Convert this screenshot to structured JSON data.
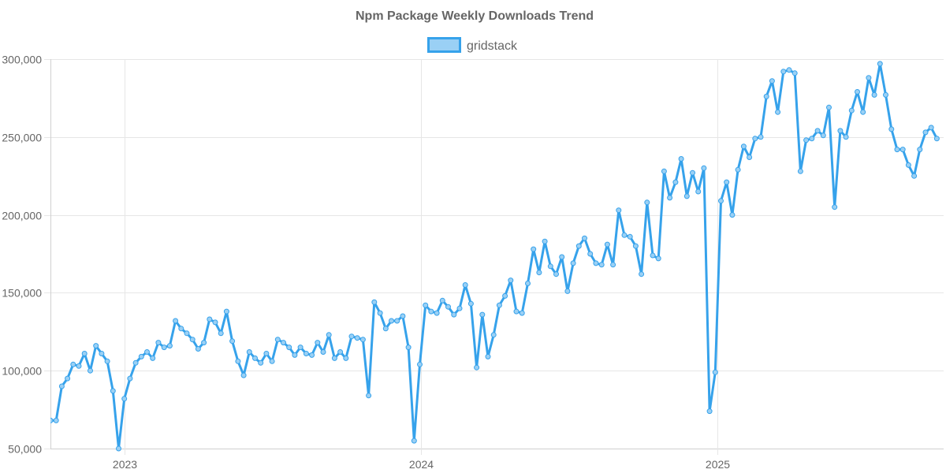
{
  "chart_data": {
    "type": "line",
    "title": "Npm Package Weekly Downloads Trend",
    "xlabel": "",
    "ylabel": "",
    "x_range": [
      "2022-10-02",
      "2025-09-14"
    ],
    "x_tick_labels": [
      {
        "date": "2023-01-01",
        "label": "2023"
      },
      {
        "date": "2024-01-01",
        "label": "2024"
      },
      {
        "date": "2025-01-01",
        "label": "2025"
      }
    ],
    "ylim": [
      50000,
      300000
    ],
    "y_ticks": [
      50000,
      100000,
      150000,
      200000,
      250000,
      300000
    ],
    "y_tick_labels": [
      "50,000",
      "100,000",
      "150,000",
      "200,000",
      "250,000",
      "300,000"
    ],
    "grid": true,
    "legend_position": "top-center",
    "colors": {
      "line": "#36a2eb",
      "fill": "#9ad0f5",
      "grid": "#e6e6e6",
      "text": "#666666"
    },
    "series": [
      {
        "name": "gridstack",
        "points": [
          [
            "2022-10-02",
            68000
          ],
          [
            "2022-10-09",
            68000
          ],
          [
            "2022-10-16",
            90000
          ],
          [
            "2022-10-23",
            95000
          ],
          [
            "2022-10-30",
            104000
          ],
          [
            "2022-11-06",
            103000
          ],
          [
            "2022-11-13",
            111000
          ],
          [
            "2022-11-20",
            100000
          ],
          [
            "2022-11-27",
            116000
          ],
          [
            "2022-12-04",
            111000
          ],
          [
            "2022-12-11",
            106000
          ],
          [
            "2022-12-18",
            87000
          ],
          [
            "2022-12-25",
            50000
          ],
          [
            "2023-01-01",
            82000
          ],
          [
            "2023-01-08",
            95000
          ],
          [
            "2023-01-15",
            105000
          ],
          [
            "2023-01-22",
            109000
          ],
          [
            "2023-01-29",
            112000
          ],
          [
            "2023-02-05",
            108000
          ],
          [
            "2023-02-12",
            118000
          ],
          [
            "2023-02-19",
            115000
          ],
          [
            "2023-02-26",
            116000
          ],
          [
            "2023-03-05",
            132000
          ],
          [
            "2023-03-12",
            127000
          ],
          [
            "2023-03-19",
            124000
          ],
          [
            "2023-03-26",
            120000
          ],
          [
            "2023-04-02",
            114000
          ],
          [
            "2023-04-09",
            118000
          ],
          [
            "2023-04-16",
            133000
          ],
          [
            "2023-04-23",
            131000
          ],
          [
            "2023-04-30",
            124000
          ],
          [
            "2023-05-07",
            138000
          ],
          [
            "2023-05-14",
            119000
          ],
          [
            "2023-05-21",
            106000
          ],
          [
            "2023-05-28",
            97000
          ],
          [
            "2023-06-04",
            112000
          ],
          [
            "2023-06-11",
            108000
          ],
          [
            "2023-06-18",
            105000
          ],
          [
            "2023-06-25",
            111000
          ],
          [
            "2023-07-02",
            106000
          ],
          [
            "2023-07-09",
            120000
          ],
          [
            "2023-07-16",
            118000
          ],
          [
            "2023-07-23",
            115000
          ],
          [
            "2023-07-30",
            110000
          ],
          [
            "2023-08-06",
            115000
          ],
          [
            "2023-08-13",
            111000
          ],
          [
            "2023-08-20",
            110000
          ],
          [
            "2023-08-27",
            118000
          ],
          [
            "2023-09-03",
            112000
          ],
          [
            "2023-09-10",
            123000
          ],
          [
            "2023-09-17",
            108000
          ],
          [
            "2023-09-24",
            112000
          ],
          [
            "2023-10-01",
            108000
          ],
          [
            "2023-10-08",
            122000
          ],
          [
            "2023-10-15",
            121000
          ],
          [
            "2023-10-22",
            120000
          ],
          [
            "2023-10-29",
            84000
          ],
          [
            "2023-11-05",
            144000
          ],
          [
            "2023-11-12",
            137000
          ],
          [
            "2023-11-19",
            127000
          ],
          [
            "2023-11-26",
            132000
          ],
          [
            "2023-12-03",
            132000
          ],
          [
            "2023-12-10",
            135000
          ],
          [
            "2023-12-17",
            115000
          ],
          [
            "2023-12-24",
            55000
          ],
          [
            "2023-12-31",
            104000
          ],
          [
            "2024-01-07",
            142000
          ],
          [
            "2024-01-14",
            138000
          ],
          [
            "2024-01-21",
            137000
          ],
          [
            "2024-01-28",
            145000
          ],
          [
            "2024-02-04",
            141000
          ],
          [
            "2024-02-11",
            136000
          ],
          [
            "2024-02-18",
            140000
          ],
          [
            "2024-02-25",
            155000
          ],
          [
            "2024-03-03",
            143000
          ],
          [
            "2024-03-10",
            102000
          ],
          [
            "2024-03-17",
            136000
          ],
          [
            "2024-03-24",
            109000
          ],
          [
            "2024-03-31",
            123000
          ],
          [
            "2024-04-07",
            142000
          ],
          [
            "2024-04-14",
            148000
          ],
          [
            "2024-04-21",
            158000
          ],
          [
            "2024-04-28",
            138000
          ],
          [
            "2024-05-05",
            137000
          ],
          [
            "2024-05-12",
            156000
          ],
          [
            "2024-05-19",
            178000
          ],
          [
            "2024-05-26",
            163000
          ],
          [
            "2024-06-02",
            183000
          ],
          [
            "2024-06-09",
            167000
          ],
          [
            "2024-06-16",
            162000
          ],
          [
            "2024-06-23",
            173000
          ],
          [
            "2024-06-30",
            151000
          ],
          [
            "2024-07-07",
            169000
          ],
          [
            "2024-07-14",
            180000
          ],
          [
            "2024-07-21",
            185000
          ],
          [
            "2024-07-28",
            175000
          ],
          [
            "2024-08-04",
            169000
          ],
          [
            "2024-08-11",
            168000
          ],
          [
            "2024-08-18",
            181000
          ],
          [
            "2024-08-25",
            168000
          ],
          [
            "2024-09-01",
            203000
          ],
          [
            "2024-09-08",
            187000
          ],
          [
            "2024-09-15",
            186000
          ],
          [
            "2024-09-22",
            180000
          ],
          [
            "2024-09-29",
            162000
          ],
          [
            "2024-10-06",
            208000
          ],
          [
            "2024-10-13",
            174000
          ],
          [
            "2024-10-20",
            172000
          ],
          [
            "2024-10-27",
            228000
          ],
          [
            "2024-11-03",
            211000
          ],
          [
            "2024-11-10",
            221000
          ],
          [
            "2024-11-17",
            236000
          ],
          [
            "2024-11-24",
            212000
          ],
          [
            "2024-12-01",
            227000
          ],
          [
            "2024-12-08",
            215000
          ],
          [
            "2024-12-15",
            230000
          ],
          [
            "2024-12-22",
            74000
          ],
          [
            "2024-12-29",
            99000
          ],
          [
            "2025-01-05",
            209000
          ],
          [
            "2025-01-12",
            221000
          ],
          [
            "2025-01-19",
            200000
          ],
          [
            "2025-01-26",
            229000
          ],
          [
            "2025-02-02",
            244000
          ],
          [
            "2025-02-09",
            237000
          ],
          [
            "2025-02-16",
            249000
          ],
          [
            "2025-02-23",
            250000
          ],
          [
            "2025-03-02",
            276000
          ],
          [
            "2025-03-09",
            286000
          ],
          [
            "2025-03-16",
            266000
          ],
          [
            "2025-03-23",
            292000
          ],
          [
            "2025-03-30",
            293000
          ],
          [
            "2025-04-06",
            291000
          ],
          [
            "2025-04-13",
            228000
          ],
          [
            "2025-04-20",
            248000
          ],
          [
            "2025-04-27",
            249000
          ],
          [
            "2025-05-04",
            254000
          ],
          [
            "2025-05-11",
            251000
          ],
          [
            "2025-05-18",
            269000
          ],
          [
            "2025-05-25",
            205000
          ],
          [
            "2025-06-01",
            254000
          ],
          [
            "2025-06-08",
            250000
          ],
          [
            "2025-06-15",
            267000
          ],
          [
            "2025-06-22",
            279000
          ],
          [
            "2025-06-29",
            266000
          ],
          [
            "2025-07-06",
            288000
          ],
          [
            "2025-07-13",
            277000
          ],
          [
            "2025-07-20",
            297000
          ],
          [
            "2025-07-27",
            277000
          ],
          [
            "2025-08-03",
            255000
          ],
          [
            "2025-08-10",
            242000
          ],
          [
            "2025-08-17",
            242000
          ],
          [
            "2025-08-24",
            232000
          ],
          [
            "2025-08-31",
            225000
          ],
          [
            "2025-09-07",
            242000
          ],
          [
            "2025-09-14",
            253000
          ],
          [
            "2025-09-21",
            256000
          ],
          [
            "2025-09-28",
            249000
          ]
        ]
      }
    ]
  }
}
